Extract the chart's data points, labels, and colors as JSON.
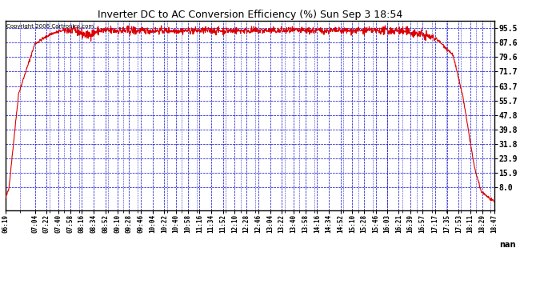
{
  "title": "Inverter DC to AC Conversion Efficiency (%) Sun Sep 3 18:54",
  "copyright_text": "Copyright 2006 Cartronics.com",
  "yticks": [
    95.5,
    87.6,
    79.6,
    71.7,
    63.7,
    55.7,
    47.8,
    39.8,
    31.8,
    23.9,
    15.9,
    8.0
  ],
  "ylabel_nan": "nan",
  "background_color": "#ffffff",
  "plot_bg_color": "#ffffff",
  "grid_color": "#0000cc",
  "line_color": "#dd0000",
  "title_color": "#000000",
  "xtick_labels": [
    "06:19",
    "07:04",
    "07:22",
    "07:40",
    "07:58",
    "08:16",
    "08:34",
    "08:52",
    "09:10",
    "09:28",
    "09:46",
    "10:04",
    "10:22",
    "10:40",
    "10:58",
    "11:16",
    "11:34",
    "11:52",
    "12:10",
    "12:28",
    "12:46",
    "13:04",
    "13:22",
    "13:40",
    "13:58",
    "14:16",
    "14:34",
    "14:52",
    "15:10",
    "15:28",
    "15:46",
    "16:03",
    "16:21",
    "16:39",
    "16:57",
    "17:17",
    "17:35",
    "17:53",
    "18:11",
    "18:29",
    "18:47"
  ],
  "ymin": -4.5,
  "ymax": 99.5,
  "line_width": 0.8,
  "figwidth": 6.9,
  "figheight": 3.75,
  "dpi": 100
}
